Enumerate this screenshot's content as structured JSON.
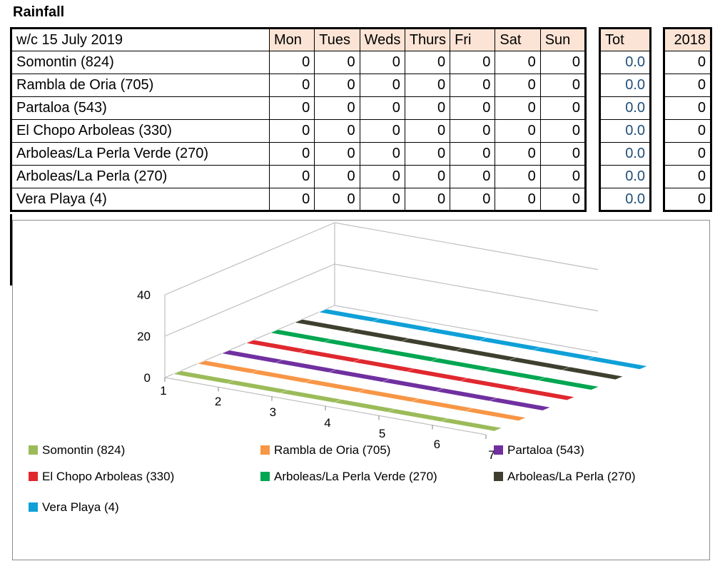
{
  "title": "Rainfall",
  "week_label": "w/c 15 July 2019",
  "days": [
    "Mon",
    "Tues",
    "Weds",
    "Thurs",
    "Fri",
    "Sat",
    "Sun"
  ],
  "total_label": "Tot",
  "previous_year_label": "2018",
  "rows": [
    {
      "site": "Somontin (824)",
      "values": [
        "0",
        "0",
        "0",
        "0",
        "0",
        "0",
        "0"
      ],
      "total": "0.0",
      "previous": "0"
    },
    {
      "site": "Rambla de Oria (705)",
      "values": [
        "0",
        "0",
        "0",
        "0",
        "0",
        "0",
        "0"
      ],
      "total": "0.0",
      "previous": "0"
    },
    {
      "site": "Partaloa (543)",
      "values": [
        "0",
        "0",
        "0",
        "0",
        "0",
        "0",
        "0"
      ],
      "total": "0.0",
      "previous": "0"
    },
    {
      "site": "El Chopo Arboleas (330)",
      "values": [
        "0",
        "0",
        "0",
        "0",
        "0",
        "0",
        "0"
      ],
      "total": "0.0",
      "previous": "0"
    },
    {
      "site": "Arboleas/La Perla Verde (270)",
      "values": [
        "0",
        "0",
        "0",
        "0",
        "0",
        "0",
        "0"
      ],
      "total": "0.0",
      "previous": "0"
    },
    {
      "site": "Arboleas/La Perla (270)",
      "values": [
        "0",
        "0",
        "0",
        "0",
        "0",
        "0",
        "0"
      ],
      "total": "0.0",
      "previous": "0"
    },
    {
      "site": "Vera Playa (4)",
      "values": [
        "0",
        "0",
        "0",
        "0",
        "0",
        "0",
        "0"
      ],
      "total": "0.0",
      "previous": "0"
    }
  ],
  "chart_data": {
    "type": "line",
    "subtype": "3d",
    "title": "",
    "x": [
      "1",
      "2",
      "3",
      "4",
      "5",
      "6",
      "7"
    ],
    "y_ticks": [
      "0",
      "20",
      "40"
    ],
    "ylim": [
      0,
      40
    ],
    "legend_position": "bottom",
    "series": [
      {
        "name": "Somontin (824)",
        "color": "#9bbb59",
        "values": [
          0,
          0,
          0,
          0,
          0,
          0,
          0
        ]
      },
      {
        "name": "Rambla de Oria (705)",
        "color": "#f79646",
        "values": [
          0,
          0,
          0,
          0,
          0,
          0,
          0
        ]
      },
      {
        "name": "Partaloa (543)",
        "color": "#7030a0",
        "values": [
          0,
          0,
          0,
          0,
          0,
          0,
          0
        ]
      },
      {
        "name": "El Chopo Arboleas (330)",
        "color": "#e0282f",
        "values": [
          0,
          0,
          0,
          0,
          0,
          0,
          0
        ]
      },
      {
        "name": "Arboleas/La Perla Verde (270)",
        "color": "#00a651",
        "values": [
          0,
          0,
          0,
          0,
          0,
          0,
          0
        ]
      },
      {
        "name": "Arboleas/La Perla (270)",
        "color": "#3f3f2f",
        "values": [
          0,
          0,
          0,
          0,
          0,
          0,
          0
        ]
      },
      {
        "name": "Vera Playa (4)",
        "color": "#0fa0d8",
        "values": [
          0,
          0,
          0,
          0,
          0,
          0,
          0
        ]
      }
    ]
  }
}
